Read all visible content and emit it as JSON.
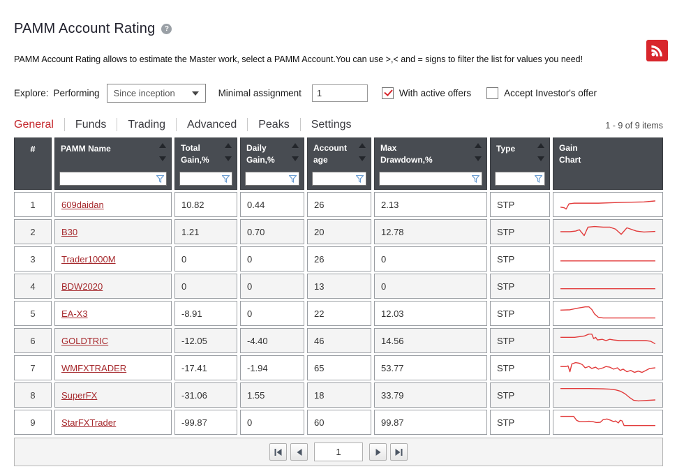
{
  "page": {
    "title": "PAMM Account Rating",
    "description": "PAMM Account Rating allows to estimate the Master work, select a PAMM Account.You can use >,< and = signs to filter the list for values you need!"
  },
  "icons": {
    "help_glyph": "?"
  },
  "colors": {
    "accent_red": "#c4282d",
    "link_red": "#a6292d",
    "rss_red": "#d8262c",
    "header_bg": "#484c52",
    "sparkline_red": "#e23b3b",
    "filter_icon_blue": "#6d9ed1"
  },
  "filters": {
    "explore_label": "Explore:",
    "performing_label": "Performing",
    "period_selected": "Since inception",
    "minimal_assignment_label": "Minimal assignment",
    "minimal_assignment_value": "1",
    "with_active_offers": {
      "label": "With active offers",
      "checked": true
    },
    "accept_investors_offer": {
      "label": "Accept Investor's offer",
      "checked": false
    }
  },
  "tabs": [
    {
      "label": "General",
      "active": true
    },
    {
      "label": "Funds",
      "active": false
    },
    {
      "label": "Trading",
      "active": false
    },
    {
      "label": "Advanced",
      "active": false
    },
    {
      "label": "Peaks",
      "active": false
    },
    {
      "label": "Settings",
      "active": false
    }
  ],
  "items_count": "1 - 9 of 9 items",
  "table": {
    "columns": [
      {
        "label": "#"
      },
      {
        "label": "PAMM Name",
        "sortable": true,
        "filterable": true
      },
      {
        "label": "Total Gain,%",
        "sortable": true,
        "filterable": true
      },
      {
        "label": "Daily Gain,%",
        "sortable": true,
        "filterable": true
      },
      {
        "label": "Account age",
        "sortable": true,
        "filterable": true
      },
      {
        "label": "Max Drawdown,%",
        "sortable": true,
        "filterable": true
      },
      {
        "label": "Type",
        "sortable": true,
        "filterable": true
      },
      {
        "label": "Gain Chart"
      }
    ],
    "rows": [
      {
        "num": "1",
        "name": "609daidan",
        "total_gain": "10.82",
        "daily_gain": "0.44",
        "age": "26",
        "drawdown": "2.13",
        "type": "STP",
        "spark": [
          [
            0,
            19
          ],
          [
            4,
            20
          ],
          [
            6,
            22
          ],
          [
            9,
            14
          ],
          [
            14,
            13
          ],
          [
            40,
            13
          ],
          [
            60,
            12
          ],
          [
            75,
            11.5
          ],
          [
            88,
            11
          ],
          [
            100,
            9.5
          ]
        ]
      },
      {
        "num": "2",
        "name": "B30",
        "total_gain": "1.21",
        "daily_gain": "0.70",
        "age": "20",
        "drawdown": "12.78",
        "type": "STP",
        "spark": [
          [
            0,
            15
          ],
          [
            10,
            15
          ],
          [
            16,
            14
          ],
          [
            20,
            12
          ],
          [
            25,
            21
          ],
          [
            29,
            8
          ],
          [
            36,
            7
          ],
          [
            45,
            8
          ],
          [
            52,
            8
          ],
          [
            58,
            11
          ],
          [
            64,
            19
          ],
          [
            70,
            9
          ],
          [
            74,
            11
          ],
          [
            80,
            14
          ],
          [
            88,
            15.5
          ],
          [
            100,
            14.5
          ]
        ]
      },
      {
        "num": "3",
        "name": "Trader1000M",
        "total_gain": "0",
        "daily_gain": "0",
        "age": "26",
        "drawdown": "0",
        "type": "STP",
        "spark": [
          [
            0,
            18
          ],
          [
            100,
            18
          ]
        ]
      },
      {
        "num": "4",
        "name": "BDW2020",
        "total_gain": "0",
        "daily_gain": "0",
        "age": "13",
        "drawdown": "0",
        "type": "STP",
        "spark": [
          [
            0,
            19
          ],
          [
            100,
            19
          ]
        ]
      },
      {
        "num": "5",
        "name": "EA-X3",
        "total_gain": "-8.91",
        "daily_gain": "0",
        "age": "22",
        "drawdown": "12.03",
        "type": "STP",
        "spark": [
          [
            0,
            10
          ],
          [
            10,
            9.5
          ],
          [
            18,
            7
          ],
          [
            26,
            5
          ],
          [
            30,
            5
          ],
          [
            33,
            9
          ],
          [
            36,
            16
          ],
          [
            40,
            21
          ],
          [
            45,
            22
          ],
          [
            100,
            22
          ]
        ]
      },
      {
        "num": "6",
        "name": "GOLDTRIC",
        "total_gain": "-12.05",
        "daily_gain": "-4.40",
        "age": "46",
        "drawdown": "14.56",
        "type": "STP",
        "spark": [
          [
            0,
            10
          ],
          [
            15,
            10
          ],
          [
            25,
            8
          ],
          [
            30,
            5
          ],
          [
            33,
            5
          ],
          [
            35,
            12
          ],
          [
            37,
            10
          ],
          [
            39,
            14
          ],
          [
            44,
            13
          ],
          [
            48,
            15
          ],
          [
            52,
            13
          ],
          [
            56,
            14
          ],
          [
            62,
            15
          ],
          [
            75,
            15
          ],
          [
            90,
            15
          ],
          [
            95,
            16
          ],
          [
            100,
            20
          ]
        ]
      },
      {
        "num": "7",
        "name": "WMFXTRADER",
        "total_gain": "-17.41",
        "daily_gain": "-1.94",
        "age": "65",
        "drawdown": "53.77",
        "type": "STP",
        "spark": [
          [
            0,
            13
          ],
          [
            6,
            13
          ],
          [
            8,
            12
          ],
          [
            10,
            21
          ],
          [
            12,
            9
          ],
          [
            16,
            7
          ],
          [
            20,
            8
          ],
          [
            23,
            10
          ],
          [
            26,
            15
          ],
          [
            30,
            13
          ],
          [
            33,
            16
          ],
          [
            37,
            14
          ],
          [
            40,
            17
          ],
          [
            45,
            15
          ],
          [
            48,
            13
          ],
          [
            52,
            14
          ],
          [
            56,
            17
          ],
          [
            60,
            15
          ],
          [
            63,
            19
          ],
          [
            66,
            17
          ],
          [
            70,
            21
          ],
          [
            74,
            19
          ],
          [
            78,
            22
          ],
          [
            82,
            20
          ],
          [
            86,
            22
          ],
          [
            90,
            19
          ],
          [
            94,
            16
          ],
          [
            100,
            15
          ]
        ]
      },
      {
        "num": "8",
        "name": "SuperFX",
        "total_gain": "-31.06",
        "daily_gain": "1.55",
        "age": "18",
        "drawdown": "33.79",
        "type": "STP",
        "spark": [
          [
            0,
            5
          ],
          [
            30,
            5
          ],
          [
            45,
            5.5
          ],
          [
            52,
            6
          ],
          [
            58,
            7
          ],
          [
            63,
            9
          ],
          [
            68,
            13
          ],
          [
            73,
            19
          ],
          [
            77,
            23
          ],
          [
            82,
            24
          ],
          [
            88,
            23.5
          ],
          [
            100,
            22.5
          ]
        ]
      },
      {
        "num": "9",
        "name": "StarFXTrader",
        "total_gain": "-99.87",
        "daily_gain": "0",
        "age": "60",
        "drawdown": "99.87",
        "type": "STP",
        "spark": [
          [
            0,
            6
          ],
          [
            14,
            6
          ],
          [
            17,
            12
          ],
          [
            20,
            14
          ],
          [
            26,
            14
          ],
          [
            30,
            13.5
          ],
          [
            34,
            14
          ],
          [
            38,
            15.5
          ],
          [
            42,
            15
          ],
          [
            45,
            11
          ],
          [
            49,
            10
          ],
          [
            53,
            12
          ],
          [
            56,
            14
          ],
          [
            58,
            13
          ],
          [
            61,
            16
          ],
          [
            63,
            12
          ],
          [
            65,
            13
          ],
          [
            67,
            20
          ],
          [
            100,
            20
          ]
        ]
      }
    ]
  },
  "pagination": {
    "page": "1"
  }
}
